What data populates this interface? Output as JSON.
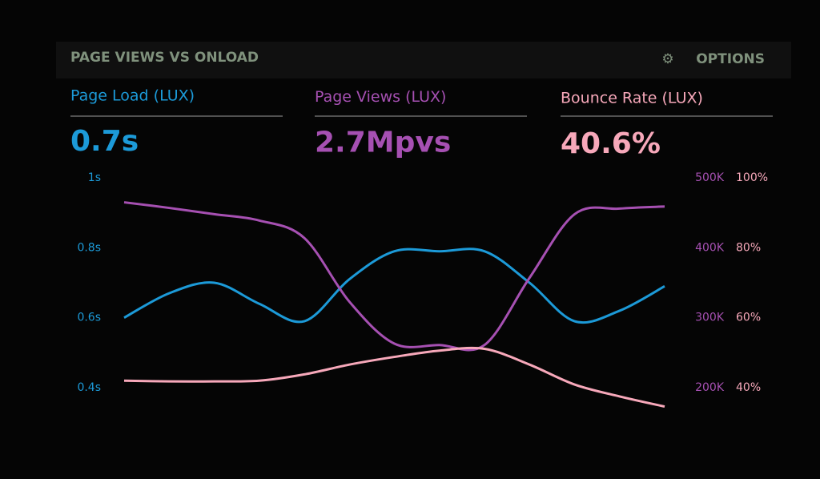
{
  "chart_data": {
    "type": "line",
    "title": "PAGE VIEWS VS ONLOAD",
    "options": "OPTIONS",
    "categories": [
      null,
      null,
      null,
      null,
      null,
      null,
      null,
      null,
      null,
      null,
      null,
      null,
      null
    ],
    "series": [
      {
        "name": "Page Load (LUX)",
        "summary": "0.7s",
        "color": "#1c9ad8",
        "axis": "y",
        "values": [
          0.6,
          0.67,
          0.7,
          0.64,
          0.59,
          0.71,
          0.79,
          0.79,
          0.79,
          0.7,
          0.59,
          0.62,
          0.69
        ]
      },
      {
        "name": "Page Views (LUX)",
        "summary": "2.7Mpvs",
        "color": "#a650b2",
        "axis": "y2",
        "values": [
          465000,
          457000,
          448000,
          439000,
          414000,
          323000,
          263000,
          261000,
          261000,
          357000,
          448000,
          456000,
          459000
        ]
      },
      {
        "name": "Bounce Rate (LUX)",
        "summary": "40.6%",
        "color": "#f7a8ba",
        "axis": "y3",
        "values": [
          42,
          41.8,
          41.8,
          42,
          43.8,
          46.6,
          48.8,
          50.6,
          51.1,
          46.6,
          40.9,
          37.5,
          34.6
        ]
      }
    ],
    "ylim": [
      0.4,
      1
    ],
    "yticks": [
      {
        "value": 0.4,
        "label": "0.4s"
      },
      {
        "value": 0.6,
        "label": "0.6s"
      },
      {
        "value": 0.8,
        "label": "0.8s"
      },
      {
        "value": 1,
        "label": "1s"
      }
    ],
    "y2lim": [
      200000,
      500000
    ],
    "y2ticks": [
      {
        "value": 200000,
        "label": "200K"
      },
      {
        "value": 300000,
        "label": "300K"
      },
      {
        "value": 400000,
        "label": "400K"
      },
      {
        "value": 500000,
        "label": "500K"
      }
    ],
    "y3lim": [
      40,
      100
    ],
    "y3ticks": [
      {
        "value": 40,
        "label": "40%"
      },
      {
        "value": 60,
        "label": "60%"
      },
      {
        "value": 80,
        "label": "80%"
      },
      {
        "value": 100,
        "label": "100%"
      }
    ]
  }
}
